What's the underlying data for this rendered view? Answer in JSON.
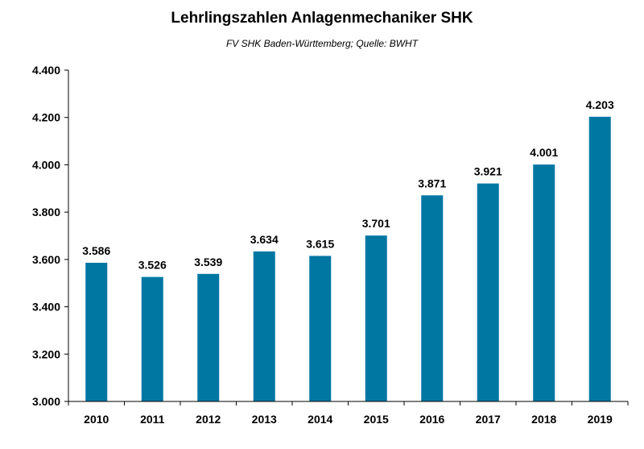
{
  "chart_data": {
    "type": "bar",
    "title": "Lehrlingszahlen Anlagenmechaniker SHK",
    "subtitle": "FV SHK Baden-Württemberg; Quelle: BWHT",
    "categories": [
      "2010",
      "2011",
      "2012",
      "2013",
      "2014",
      "2015",
      "2016",
      "2017",
      "2018",
      "2019"
    ],
    "values": [
      3586,
      3526,
      3539,
      3634,
      3615,
      3701,
      3871,
      3921,
      4001,
      4203
    ],
    "value_labels": [
      "3.586",
      "3.526",
      "3.539",
      "3.634",
      "3.615",
      "3.701",
      "3.871",
      "3.921",
      "4.001",
      "4.203"
    ],
    "ylim": [
      3000,
      4400
    ],
    "yticks": [
      3000,
      3200,
      3400,
      3600,
      3800,
      4000,
      4200,
      4400
    ],
    "ytick_labels": [
      "3.000",
      "3.200",
      "3.400",
      "3.600",
      "3.800",
      "4.000",
      "4.200",
      "4.400"
    ],
    "xlabel": "",
    "ylabel": "",
    "grid": false,
    "legend": "none",
    "bar_color": "#0077A3"
  }
}
